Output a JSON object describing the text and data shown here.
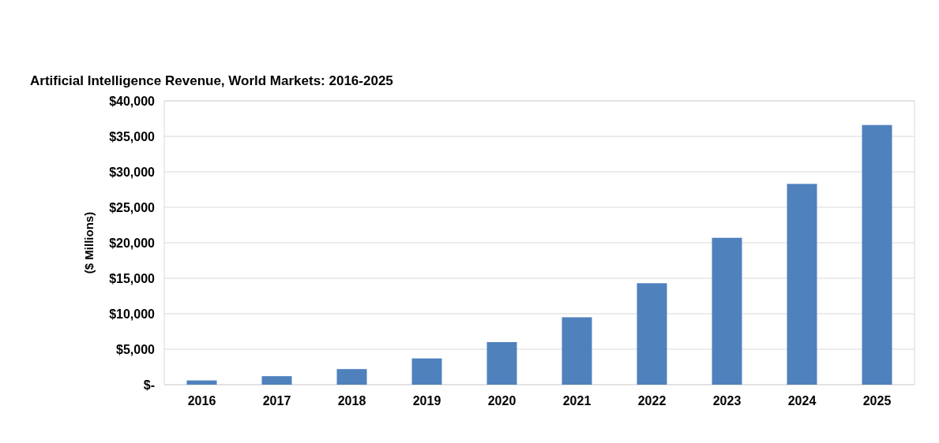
{
  "chart_data": {
    "type": "bar",
    "title": "Artificial Intelligence Revenue, World Markets: 2016-2025",
    "ylabel": "($ Millions)",
    "categories": [
      "2016",
      "2017",
      "2018",
      "2019",
      "2020",
      "2021",
      "2022",
      "2023",
      "2024",
      "2025"
    ],
    "values": [
      600,
      1200,
      2200,
      3700,
      6000,
      9500,
      14300,
      20700,
      28300,
      36600
    ],
    "color": "#4f81bd",
    "ylim": [
      0,
      40000
    ],
    "yticks": [
      {
        "value": 0,
        "label": "$-"
      },
      {
        "value": 5000,
        "label": "$5,000"
      },
      {
        "value": 10000,
        "label": "$10,000"
      },
      {
        "value": 15000,
        "label": "$15,000"
      },
      {
        "value": 20000,
        "label": "$20,000"
      },
      {
        "value": 25000,
        "label": "$25,000"
      },
      {
        "value": 30000,
        "label": "$30,000"
      },
      {
        "value": 35000,
        "label": "$35,000"
      },
      {
        "value": 40000,
        "label": "$40,000"
      }
    ],
    "grid": "y"
  }
}
